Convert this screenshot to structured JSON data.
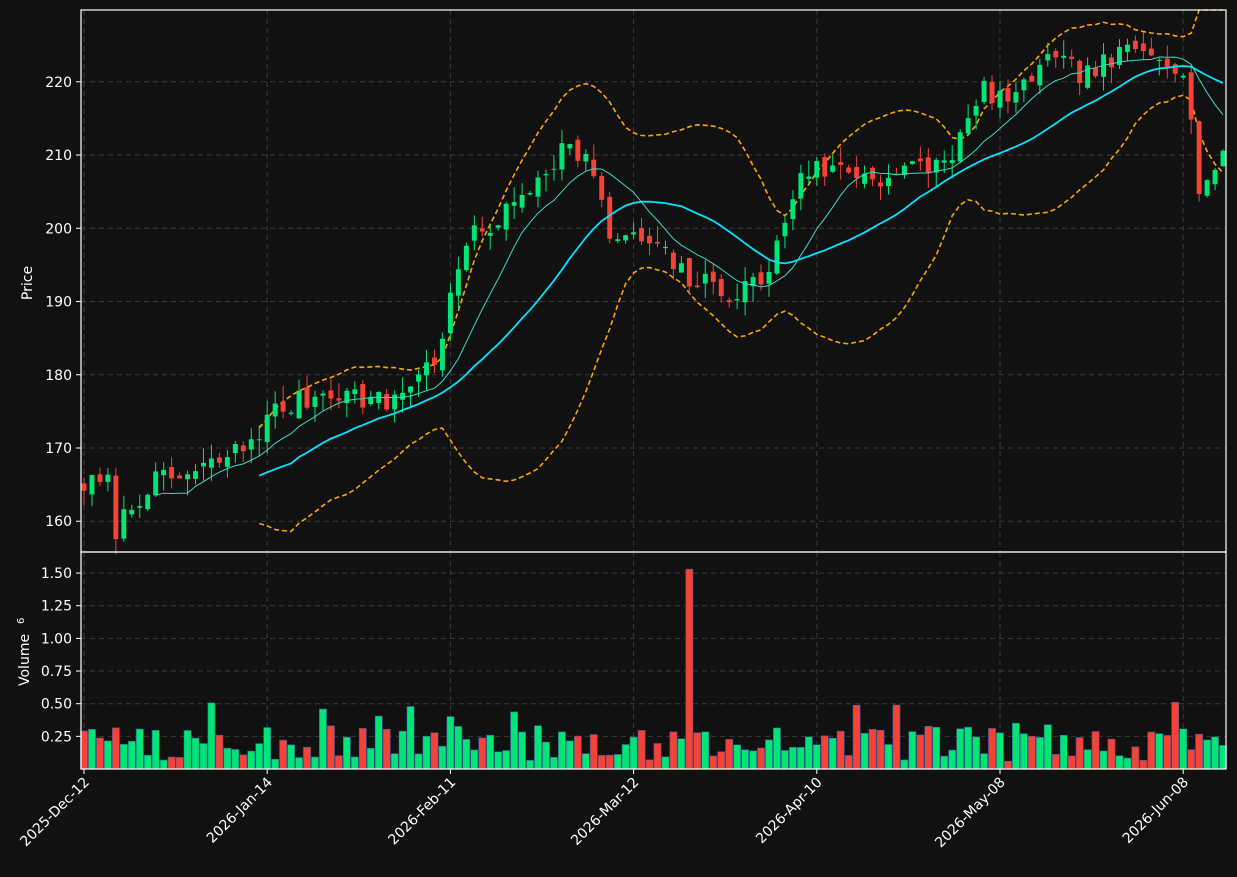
{
  "chart_data": {
    "type": "candlestick",
    "price_panel": {
      "ylabel": "Price",
      "yticks": [
        160,
        170,
        180,
        190,
        200,
        210,
        220
      ],
      "ylim": [
        155.8,
        229.8
      ],
      "grid": true
    },
    "volume_panel": {
      "ylabel": "Volume",
      "ylabel_exponent": "6",
      "yticks": [
        0.25,
        0.5,
        0.75,
        1.0,
        1.25,
        1.5
      ],
      "ytick_labels": [
        "0.25",
        "0.50",
        "0.75",
        "1.00",
        "1.25",
        "1.50"
      ],
      "ylim": [
        0.0,
        1.6
      ],
      "grid": true
    },
    "x_tick_labels": [
      "2025-Dec-12",
      "2026-Jan-14",
      "2026-Feb-11",
      "2026-Mar-12",
      "2026-Apr-10",
      "2026-May-08",
      "2026-Jun-08"
    ],
    "x_tick_index": [
      0,
      23,
      46,
      69,
      92,
      115,
      138
    ],
    "n_bars": 144,
    "colors": {
      "up": "#00e676",
      "down": "#f44336",
      "ma_fast": "#40d8c8",
      "ma_slow": "#00e5ff",
      "bands": "#ffa500",
      "background": "#111111",
      "grid": "#3a3a3a"
    },
    "keypoints": [
      [
        0,
        165
      ],
      [
        3,
        165
      ],
      [
        4,
        159
      ],
      [
        8,
        165
      ],
      [
        14,
        166.5
      ],
      [
        20,
        170
      ],
      [
        24,
        175
      ],
      [
        31,
        178
      ],
      [
        38,
        176
      ],
      [
        44,
        182
      ],
      [
        48,
        198
      ],
      [
        53,
        202
      ],
      [
        60,
        211
      ],
      [
        63,
        210
      ],
      [
        66,
        199
      ],
      [
        71,
        198
      ],
      [
        76,
        193
      ],
      [
        82,
        191
      ],
      [
        86,
        194
      ],
      [
        90,
        208
      ],
      [
        95,
        208
      ],
      [
        100,
        207
      ],
      [
        108,
        209
      ],
      [
        111,
        214
      ],
      [
        113,
        219
      ],
      [
        117,
        217
      ],
      [
        120,
        223
      ],
      [
        126,
        221
      ],
      [
        131,
        224
      ],
      [
        135,
        224
      ],
      [
        138,
        222
      ],
      [
        140,
        206
      ],
      [
        143,
        209
      ]
    ],
    "volume_spike_index": 76,
    "volume_spike_value": 1.53,
    "seed": 7,
    "ma_fast_period": 10,
    "ma_slow_period": 23,
    "band_period": 23,
    "band_width_std": 2
  }
}
